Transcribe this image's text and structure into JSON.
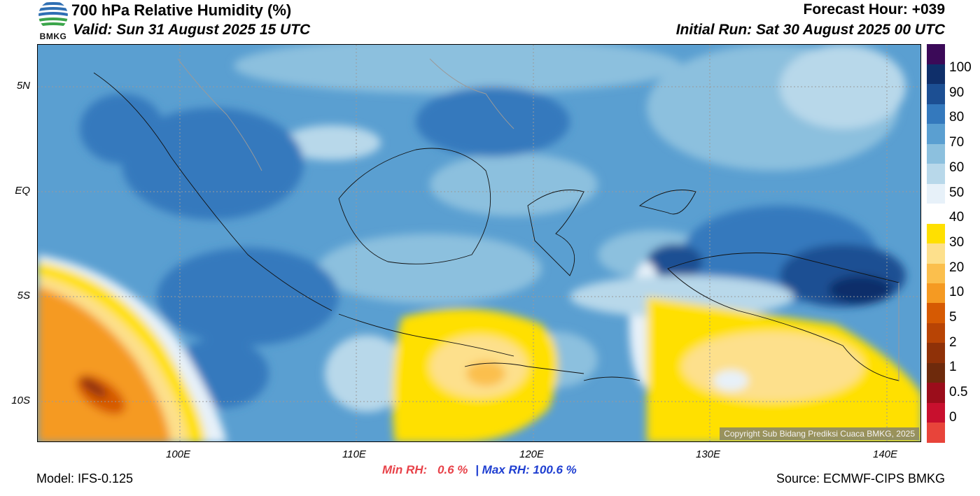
{
  "header": {
    "title": "700 hPa Relative Humidity (%)",
    "valid": "Valid: Sun 31 August 2025 15 UTC",
    "forecast_hour": "Forecast Hour: +039",
    "initial_run": "Initial Run: Sat 30 August 2025 00 UTC"
  },
  "logo": {
    "text": "BMKG"
  },
  "map": {
    "copyright": "Copyright Sub Bidang Prediksi Cuaca BMKG, 2025",
    "lat_labels": [
      "5N",
      "EQ",
      "5S",
      "10S"
    ],
    "lon_labels": [
      "100E",
      "110E",
      "120E",
      "130E",
      "140E"
    ]
  },
  "colorbar": {
    "labels": [
      "100",
      "90",
      "80",
      "70",
      "60",
      "50",
      "40",
      "30",
      "20",
      "10",
      "5",
      "2",
      "1",
      "0.5",
      "0"
    ],
    "colors": [
      "#e8443a",
      "#c8102e",
      "#9b0d1b",
      "#6e2a0c",
      "#8f3108",
      "#b84405",
      "#d65a03",
      "#f59a22",
      "#fbbf4d",
      "#fde08c",
      "#ffe000",
      "#ffffff",
      "#e7f1f9",
      "#b8d8ea",
      "#8cc0de",
      "#5a9fd1",
      "#3479bd",
      "#1c4f93",
      "#0f2f6a",
      "#3b0a58"
    ]
  },
  "footer": {
    "model": "Model: IFS-0.125",
    "min_rh_label": "Min RH:",
    "min_rh_value": "0.6 %",
    "separator": "|",
    "max_rh_label": "Max RH:",
    "max_rh_value": "100.6 %",
    "source": "Source: ECMWF-CIPS BMKG"
  }
}
